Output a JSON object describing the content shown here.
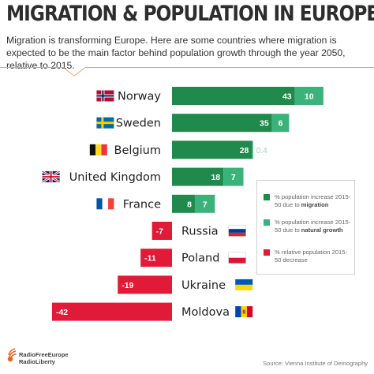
{
  "header": {
    "title": "MIGRATION & POPULATION IN EUROPE",
    "subtitle": "Migration is transforming Europe. Here are some countries where migration is expected to be the main factor behind population growth through the year 2050, relative to 2015."
  },
  "colors": {
    "migration": "#1f8a4c",
    "natural": "#3bb27a",
    "decrease": "#e01a37",
    "accent_line": "#e3a57e"
  },
  "chart_data": {
    "type": "bar",
    "orientation": "horizontal",
    "stacked": true,
    "categories": [
      "Norway",
      "Sweden",
      "Belgium",
      "United Kingdom",
      "France",
      "Russia",
      "Poland",
      "Ukraine",
      "Moldova"
    ],
    "series": [
      {
        "name": "% population increase 2015-50 due to migration",
        "values": [
          43,
          35,
          28,
          18,
          8,
          0,
          0,
          0,
          0
        ]
      },
      {
        "name": "% population increase 2015-50 due to natural growth",
        "values": [
          10,
          6,
          0.4,
          7,
          7,
          0,
          0,
          0,
          0
        ]
      },
      {
        "name": "% relative population 2015-50 decrease",
        "values": [
          0,
          0,
          0,
          0,
          0,
          -7,
          -11,
          -19,
          -42
        ]
      }
    ],
    "data_labels": {
      "migration": [
        "43",
        "35",
        "28",
        "18",
        "8",
        "",
        "",
        "",
        ""
      ],
      "natural": [
        "10",
        "6",
        "0.4",
        "7",
        "7",
        "",
        "",
        "",
        ""
      ],
      "decrease": [
        "",
        "",
        "",
        "",
        "",
        "-7",
        "-11",
        "-19",
        "-42"
      ]
    },
    "flags": [
      "norway-flag",
      "sweden-flag",
      "belgium-flag",
      "uk-flag",
      "france-flag",
      "russia-flag",
      "poland-flag",
      "ukraine-flag",
      "moldova-flag"
    ],
    "legend": [
      {
        "text_pre": "% population increase 2015-50 due to ",
        "text_bold": "migration",
        "series": "migration"
      },
      {
        "text_pre": "% population increase 2015-50 due to ",
        "text_bold": "natural growth",
        "series": "natural"
      },
      {
        "text_pre": "% relative population 2015-50 decrease",
        "text_bold": "",
        "series": "decrease"
      }
    ],
    "legend_position": "right"
  },
  "footer": {
    "logo_line1": "RadioFreeEurope",
    "logo_line2": "RadioLiberty",
    "logo_icon": "rferl-logo-icon",
    "source": "Source: Vienna Institute of Demography"
  }
}
